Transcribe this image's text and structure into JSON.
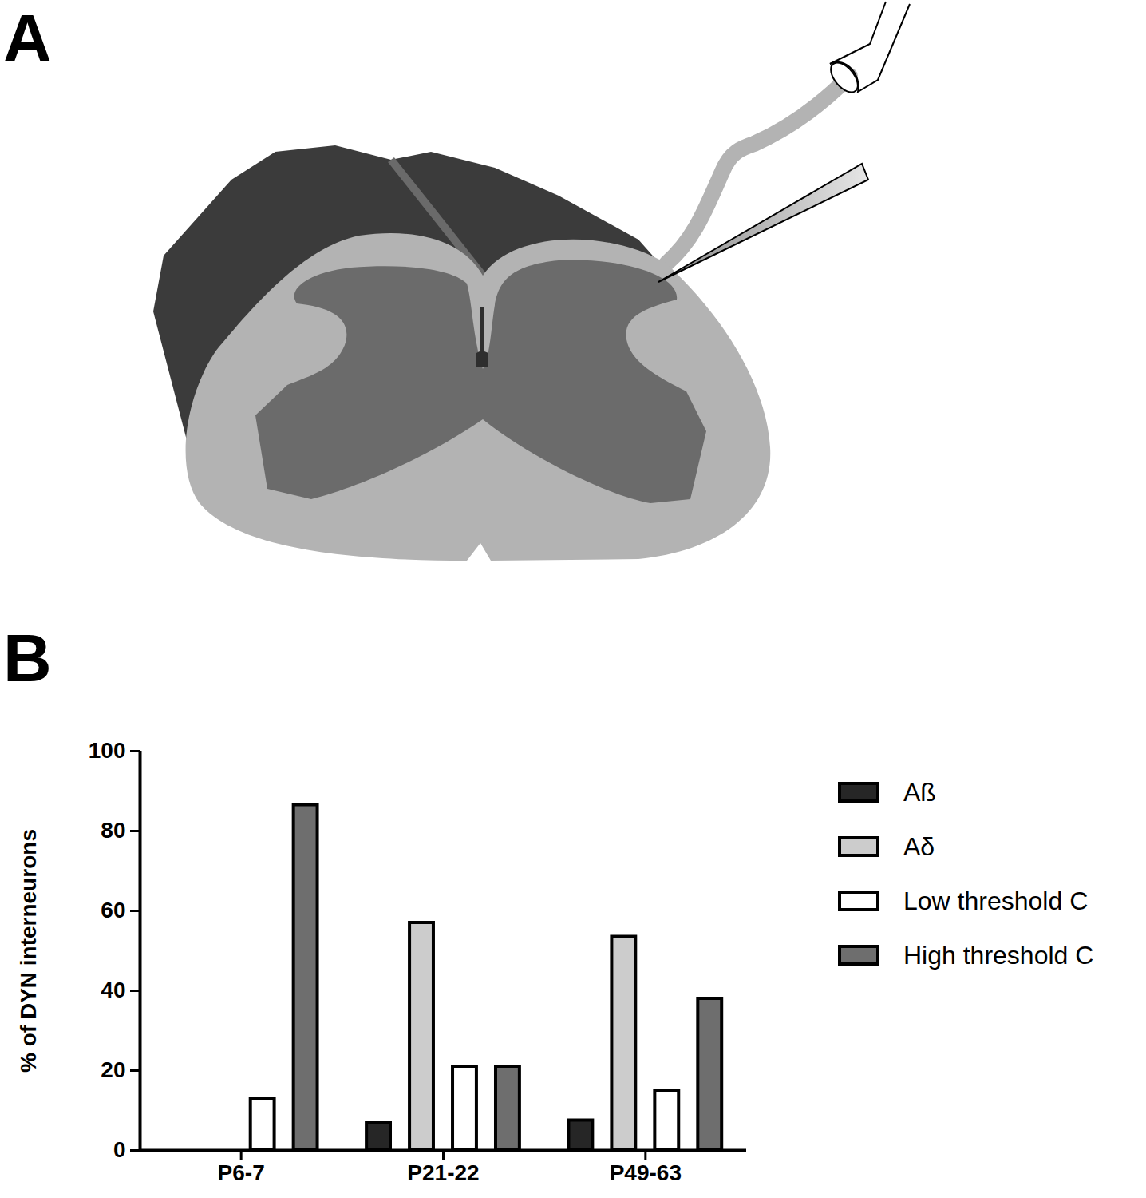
{
  "panel_labels": [
    "A",
    "B"
  ],
  "chart_data": {
    "type": "bar",
    "y_label": "% of DYN interneurons",
    "categories": [
      "P6-7",
      "P21-22",
      "P49-63"
    ],
    "series": [
      {
        "name": "Aß",
        "color": "#262626",
        "values": [
          0,
          7,
          7.5
        ]
      },
      {
        "name": "Aδ",
        "color": "#cccccc",
        "values": [
          0,
          57,
          53.5
        ]
      },
      {
        "name": "Low threshold C",
        "color": "#ffffff",
        "values": [
          13,
          21,
          15
        ]
      },
      {
        "name": "High threshold C",
        "color": "#6e6e6e",
        "values": [
          86.5,
          21,
          38
        ]
      }
    ],
    "ylim": [
      0,
      100
    ],
    "yticks": [
      0,
      20,
      40,
      60,
      80,
      100
    ],
    "legend": "right",
    "grid": false
  }
}
